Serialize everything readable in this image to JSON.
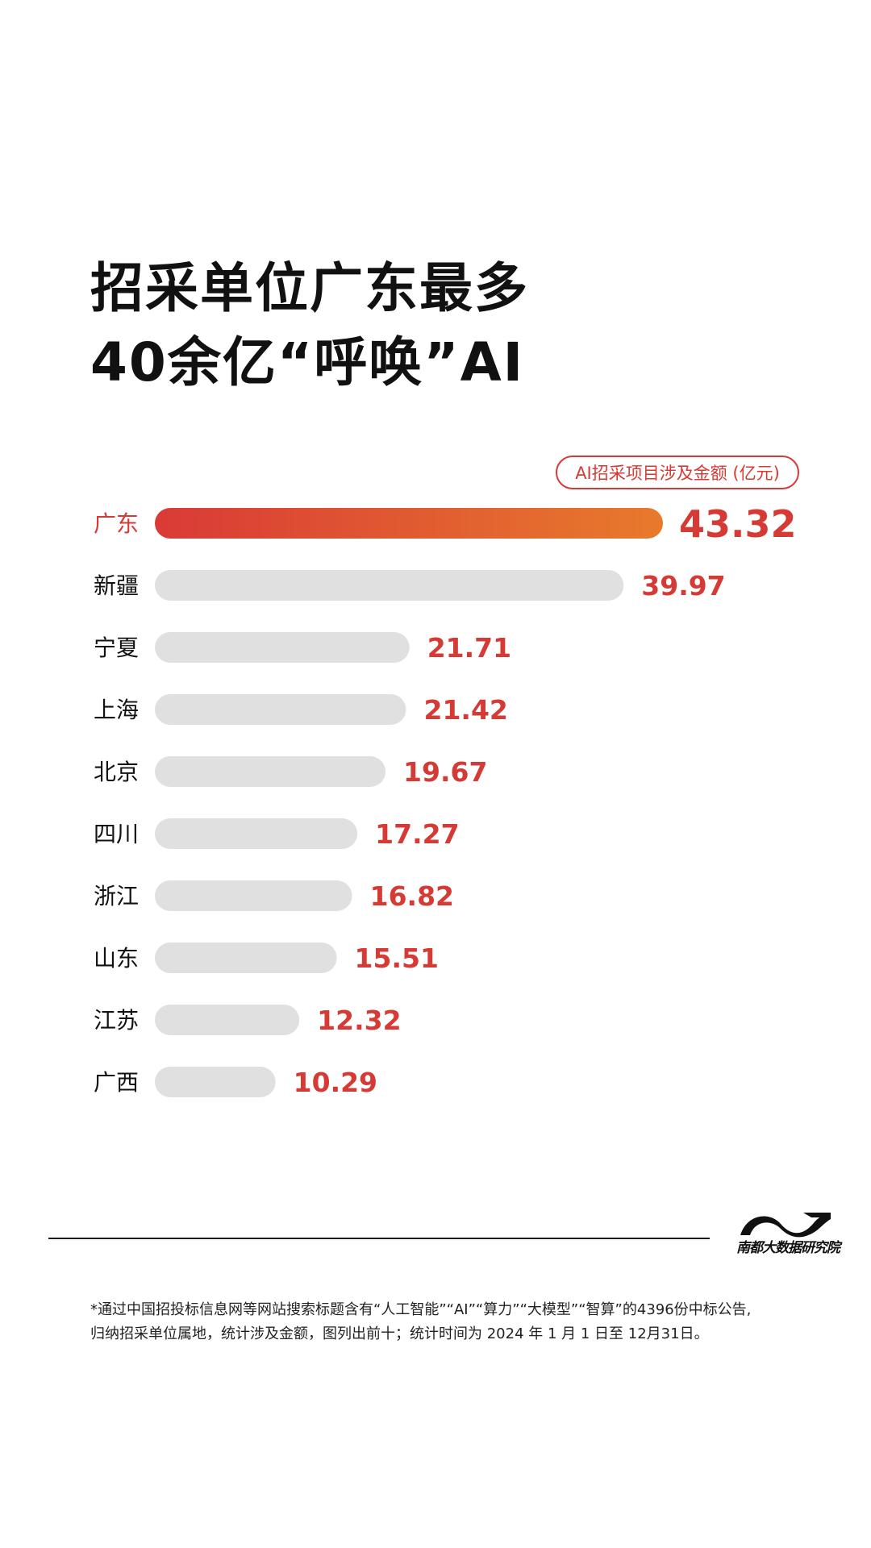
{
  "title": {
    "line1": "招采单位广东最多",
    "line2": "40余亿“呼唤”AI"
  },
  "chart_data": {
    "type": "bar",
    "orientation": "horizontal",
    "legend_label": "AI招采项目涉及金额 (亿元)",
    "categories": [
      "广东",
      "新疆",
      "宁夏",
      "上海",
      "北京",
      "四川",
      "浙江",
      "山东",
      "江苏",
      "广西"
    ],
    "values": [
      43.32,
      39.97,
      21.71,
      21.42,
      19.67,
      17.27,
      16.82,
      15.51,
      12.32,
      10.29
    ],
    "value_labels": [
      "43.32",
      "39.97",
      "21.71",
      "21.42",
      "19.67",
      "17.27",
      "16.82",
      "15.51",
      "12.32",
      "10.29"
    ],
    "highlight_index": 0,
    "colors": {
      "highlight_start": "#d93a36",
      "highlight_end": "#e87a2c",
      "bar": "#e0e0e0",
      "value_text": "#d63a34",
      "highlight_label": "#d63a34",
      "label": "#111111"
    }
  },
  "logo": {
    "text": "南都大数据研究院",
    "icon": "nandu-wave-logo-icon"
  },
  "footnote": {
    "line1": "*通过中国招投标信息网等网站搜索标题含有“人工智能”“AI”“算力”“大模型”“智算”的4396份中标公告,",
    "line2": "归纳招采单位属地，统计涉及金额，图列出前十；统计时间为 2024 年 1 月 1 日至 12月31日。"
  }
}
